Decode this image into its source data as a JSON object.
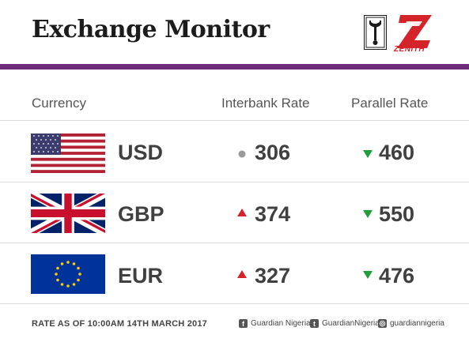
{
  "header": {
    "title": "Exchange Monitor",
    "brand_text": "ZENITH"
  },
  "table": {
    "columns": [
      "Currency",
      "Interbank Rate",
      "Parallel Rate"
    ],
    "rows": [
      {
        "code": "USD",
        "flag": "us-flag-icon",
        "interbank": "306",
        "interbank_trend": "neutral",
        "parallel": "460",
        "parallel_trend": "down"
      },
      {
        "code": "GBP",
        "flag": "uk-flag-icon",
        "interbank": "374",
        "interbank_trend": "up",
        "parallel": "550",
        "parallel_trend": "down"
      },
      {
        "code": "EUR",
        "flag": "eu-flag-icon",
        "interbank": "327",
        "interbank_trend": "up",
        "parallel": "476",
        "parallel_trend": "down"
      }
    ]
  },
  "footer": {
    "timestamp": "RATE AS OF 10:00AM 14TH MARCH 2017",
    "facebook": "Guardian Nigeria",
    "twitter": "GuardianNigeria",
    "instagram": "guardiannigeria"
  },
  "colors": {
    "accent": "#6f2c7a",
    "up": "#d5232a",
    "down": "#1f9e3a",
    "neutral": "#9a9a9a",
    "zenith": "#d5232a"
  }
}
